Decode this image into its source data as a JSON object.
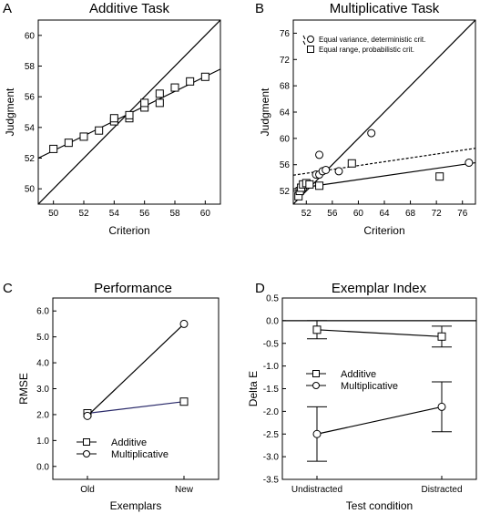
{
  "chart_data": [
    {
      "panel_label": "A",
      "title": "Additive Task",
      "type": "scatter",
      "xlabel": "Criterion",
      "ylabel": "Judgment",
      "xlim": [
        49,
        61
      ],
      "ylim": [
        49,
        61
      ],
      "xticks": [
        50,
        52,
        54,
        56,
        58,
        60
      ],
      "yticks": [
        50,
        52,
        54,
        56,
        58,
        60
      ],
      "grid": false,
      "series": [
        {
          "marker": "square",
          "x": [
            50,
            51,
            52,
            53,
            54,
            54,
            55,
            55,
            56,
            56,
            57,
            57,
            58,
            59,
            60
          ],
          "y": [
            52.6,
            53.0,
            53.4,
            53.8,
            54.4,
            54.6,
            54.6,
            54.8,
            55.3,
            55.6,
            55.6,
            56.2,
            56.6,
            57.0,
            57.3
          ]
        }
      ],
      "lines": [
        {
          "style": "solid",
          "from": [
            49,
            49
          ],
          "to": [
            61,
            61
          ]
        },
        {
          "style": "solid",
          "from": [
            49,
            52.0
          ],
          "to": [
            61,
            57.8
          ]
        }
      ]
    },
    {
      "panel_label": "B",
      "title": "Multiplicative Task",
      "type": "scatter",
      "xlabel": "Criterion",
      "ylabel": "Judgment",
      "xlim": [
        50,
        78
      ],
      "ylim": [
        50,
        78
      ],
      "xticks": [
        52,
        56,
        60,
        64,
        68,
        72,
        76
      ],
      "yticks": [
        52,
        56,
        60,
        64,
        68,
        72,
        76
      ],
      "grid": false,
      "legend_position": "top-left",
      "series": [
        {
          "name": "Equal variance, deterministic crit.",
          "marker": "circle",
          "x": [
            51.5,
            53.5,
            54,
            54,
            54.5,
            55,
            57,
            62,
            77
          ],
          "y": [
            52.5,
            54.5,
            54.5,
            57.5,
            55,
            55.2,
            55,
            60.8,
            56.3
          ]
        },
        {
          "name": "Equal range, probabilistic crit.",
          "marker": "square",
          "x": [
            50.8,
            51,
            51.2,
            51.5,
            52,
            52.5,
            54,
            59,
            72.5
          ],
          "y": [
            51.2,
            52,
            52.5,
            53,
            53.2,
            53,
            52.8,
            56.2,
            54.2
          ]
        }
      ],
      "lines": [
        {
          "style": "solid",
          "from": [
            50,
            50
          ],
          "to": [
            78,
            78
          ]
        },
        {
          "style": "solid",
          "from": [
            50,
            52.3
          ],
          "to": [
            78,
            56.3
          ]
        },
        {
          "style": "dashed",
          "from": [
            50,
            54.4
          ],
          "to": [
            78,
            58.5
          ]
        }
      ]
    },
    {
      "panel_label": "C",
      "title": "Performance",
      "type": "line",
      "xlabel": "Exemplars",
      "ylabel": "RMSE",
      "categories": [
        "Old",
        "New"
      ],
      "ylim": [
        -0.5,
        6.5
      ],
      "yticks": [
        "0.0",
        "1.0",
        "2.0",
        "3.0",
        "4.0",
        "5.0",
        "6.0"
      ],
      "grid": false,
      "legend_position": "bottom-left",
      "series": [
        {
          "name": "Additive",
          "marker": "square",
          "values": [
            2.05,
            2.5
          ]
        },
        {
          "name": "Multiplicative",
          "marker": "circle",
          "values": [
            1.95,
            5.5
          ]
        }
      ]
    },
    {
      "panel_label": "D",
      "title": "Exemplar Index",
      "type": "line",
      "xlabel": "Test condition",
      "ylabel": "Delta E",
      "categories": [
        "Undistracted",
        "Distracted"
      ],
      "ylim": [
        -3.5,
        0.5
      ],
      "yticks": [
        "0.5",
        "0.0",
        "-0.5",
        "-1.0",
        "-1.5",
        "-2.0",
        "-2.5",
        "-3.0",
        "-3.5"
      ],
      "zero_line": true,
      "grid": false,
      "legend_position": "middle-left",
      "series": [
        {
          "name": "Additive",
          "marker": "square",
          "values": [
            -0.2,
            -0.35
          ],
          "error": [
            0.2,
            0.23
          ]
        },
        {
          "name": "Multiplicative",
          "marker": "circle",
          "values": [
            -2.5,
            -1.9
          ],
          "error": [
            0.6,
            0.55
          ]
        }
      ]
    }
  ]
}
